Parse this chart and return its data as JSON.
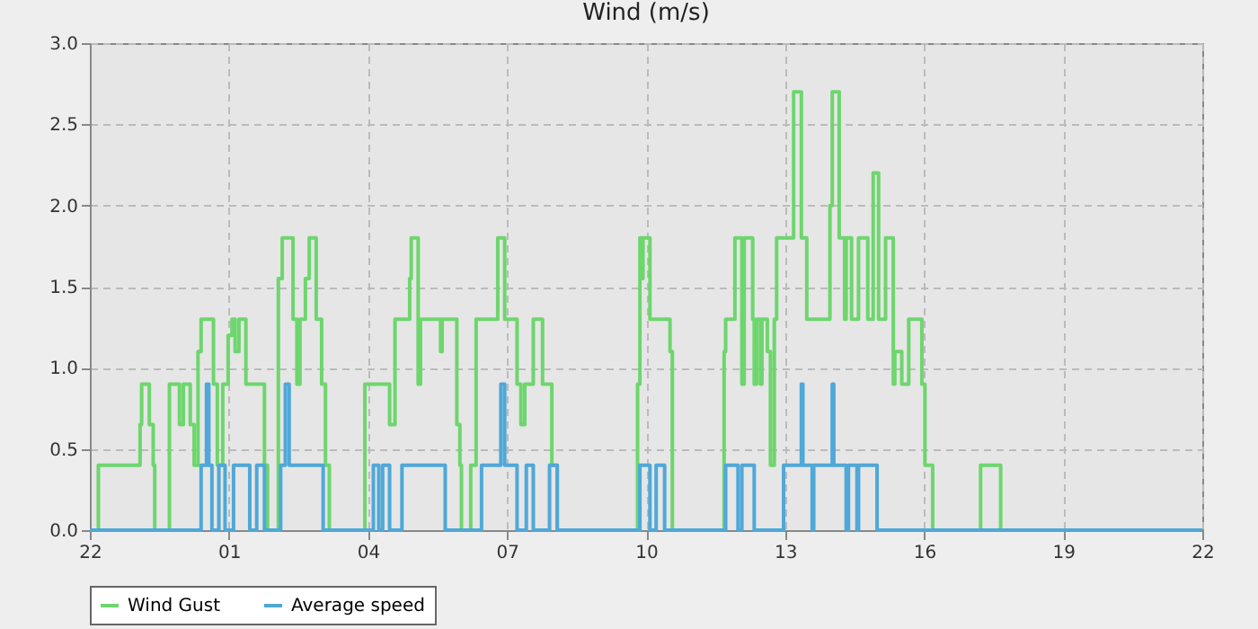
{
  "chart_data": {
    "type": "step",
    "title": "Wind (m/s)",
    "xlim": [
      "--01-01T22:00",
      "--01-02T22:00"
    ],
    "xticks": [
      {
        "value": "--01-01T22:00",
        "label": "22"
      },
      {
        "value": "--01-02T01:00",
        "label": "01"
      },
      {
        "value": "--01-02T04:00",
        "label": "04"
      },
      {
        "value": "--01-02T07:00",
        "label": "07"
      },
      {
        "value": "--01-02T10:00",
        "label": "10"
      },
      {
        "value": "--01-02T13:00",
        "label": "13"
      },
      {
        "value": "--01-02T16:00",
        "label": "16"
      },
      {
        "value": "--01-02T19:00",
        "label": "19"
      },
      {
        "value": "--01-02T22:00",
        "label": "22"
      }
    ],
    "ylim": [
      0,
      3
    ],
    "yticks": [
      {
        "value": 0,
        "label": "0.0"
      },
      {
        "value": 0.5,
        "label": "0.5"
      },
      {
        "value": 1,
        "label": "1.0"
      },
      {
        "value": 1.5,
        "label": "1.5"
      },
      {
        "value": 2,
        "label": "2.0"
      },
      {
        "value": 2.5,
        "label": "2.5"
      },
      {
        "value": 3,
        "label": "3.0"
      }
    ],
    "grid": true,
    "legend": "bottom",
    "line_style": "solid",
    "series": [
      {
        "name": "Wind Gust",
        "color": "#6dd66d",
        "x": [
          "--01-01T22:00",
          "--01-01T22:11",
          "--01-01T23:05",
          "--01-01T23:07",
          "--01-01T23:17",
          "--01-01T23:22",
          "--01-01T23:24",
          "--01-01T23:43",
          "--01-01T23:56",
          "--01-02T00:01",
          "--01-02T00:10",
          "--01-02T00:15",
          "--01-02T00:20",
          "--01-02T00:24",
          "--01-02T00:40",
          "--01-02T00:45",
          "--01-02T00:52",
          "--01-02T00:59",
          "--01-02T01:04",
          "--01-02T01:08",
          "--01-02T01:13",
          "--01-02T01:22",
          "--01-02T01:46",
          "--01-02T01:50",
          "--01-02T02:04",
          "--01-02T02:09",
          "--01-02T02:23",
          "--01-02T02:28",
          "--01-02T02:32",
          "--01-02T02:39",
          "--01-02T02:44",
          "--01-02T02:53",
          "--01-02T03:00",
          "--01-02T03:05",
          "--01-02T03:10",
          "--01-02T03:56",
          "--01-02T04:28",
          "--01-02T04:35",
          "--01-02T04:54",
          "--01-02T04:56",
          "--01-02T05:05",
          "--01-02T05:08",
          "--01-02T05:34",
          "--01-02T05:36",
          "--01-02T05:55",
          "--01-02T05:59",
          "--01-02T06:01",
          "--01-02T06:13",
          "--01-02T06:20",
          "--01-02T06:48",
          "--01-02T06:57",
          "--01-02T07:13",
          "--01-02T07:18",
          "--01-02T07:23",
          "--01-02T07:34",
          "--01-02T07:46",
          "--01-02T07:58",
          "--01-02T08:05",
          "--01-02T09:49",
          "--01-02T09:52",
          "--01-02T09:54",
          "--01-02T09:56",
          "--01-02T10:05",
          "--01-02T10:31",
          "--01-02T10:34",
          "--01-02T11:41",
          "--01-02T11:43",
          "--01-02T11:55",
          "--01-02T12:04",
          "--01-02T12:07",
          "--01-02T12:18",
          "--01-02T12:20",
          "--01-02T12:23",
          "--01-02T12:28",
          "--01-02T12:30",
          "--01-02T12:37",
          "--01-02T12:41",
          "--01-02T12:46",
          "--01-02T12:49",
          "--01-02T13:11",
          "--01-02T13:21",
          "--01-02T13:28",
          "--01-02T13:58",
          "--01-02T14:01",
          "--01-02T14:10",
          "--01-02T14:17",
          "--01-02T14:19",
          "--01-02T14:26",
          "--01-02T14:35",
          "--01-02T14:47",
          "--01-02T14:54",
          "--01-02T15:01",
          "--01-02T15:10",
          "--01-02T15:20",
          "--01-02T15:22",
          "--01-02T15:31",
          "--01-02T15:40",
          "--01-02T15:57",
          "--01-02T16:01",
          "--01-02T16:11",
          "--01-02T17:13",
          "--01-02T17:39",
          "--01-02T22:00"
        ],
        "values": [
          0,
          0.4,
          0.65,
          0.9,
          0.65,
          0.4,
          0,
          0.9,
          0.65,
          0.9,
          0.65,
          0.4,
          1.1,
          1.3,
          0.9,
          0.4,
          0.9,
          1.2,
          1.3,
          1.1,
          1.3,
          0.9,
          0.4,
          0,
          1.55,
          1.8,
          1.3,
          0.9,
          1.3,
          1.55,
          1.8,
          1.3,
          0.9,
          0.4,
          0,
          0.9,
          0.65,
          1.3,
          1.55,
          1.8,
          0.9,
          1.3,
          1.1,
          1.3,
          0.65,
          0.4,
          0,
          0.4,
          1.3,
          1.8,
          1.3,
          0.9,
          0.65,
          0.9,
          1.3,
          0.9,
          0.4,
          0,
          0.9,
          1.8,
          1.55,
          1.8,
          1.3,
          1.1,
          0,
          1.1,
          1.3,
          1.8,
          0.9,
          1.8,
          1.3,
          0.9,
          1.3,
          0.9,
          1.3,
          1.1,
          0.4,
          1.3,
          1.8,
          2.7,
          1.8,
          1.3,
          2,
          2.7,
          1.8,
          1.3,
          1.8,
          1.3,
          1.8,
          1.3,
          2.2,
          1.3,
          1.8,
          0.9,
          1.1,
          0.9,
          1.3,
          0.9,
          0.4,
          0,
          0.4,
          0,
          0
        ]
      },
      {
        "name": "Average speed",
        "color": "#4fa8d8",
        "x": [
          "--01-01T22:00",
          "--01-02T00:24",
          "--01-02T00:31",
          "--01-02T00:34",
          "--01-02T00:38",
          "--01-02T00:47",
          "--01-02T00:55",
          "--01-02T01:06",
          "--01-02T01:27",
          "--01-02T01:36",
          "--01-02T01:46",
          "--01-02T02:07",
          "--01-02T02:13",
          "--01-02T02:18",
          "--01-02T03:02",
          "--01-02T04:07",
          "--01-02T04:14",
          "--01-02T04:19",
          "--01-02T04:28",
          "--01-02T04:44",
          "--01-02T05:40",
          "--01-02T06:27",
          "--01-02T06:52",
          "--01-02T06:57",
          "--01-02T07:13",
          "--01-02T07:25",
          "--01-02T07:34",
          "--01-02T07:55",
          "--01-02T08:05",
          "--01-02T09:52",
          "--01-02T10:05",
          "--01-02T10:13",
          "--01-02T10:24",
          "--01-02T11:43",
          "--01-02T11:59",
          "--01-02T12:04",
          "--01-02T12:20",
          "--01-02T12:58",
          "--01-02T13:21",
          "--01-02T13:23",
          "--01-02T13:35",
          "--01-02T13:37",
          "--01-02T14:01",
          "--01-02T14:03",
          "--01-02T14:19",
          "--01-02T14:22",
          "--01-02T14:33",
          "--01-02T14:35",
          "--01-02T14:59",
          "--01-02T22:00"
        ],
        "values": [
          0,
          0.4,
          0.9,
          0.4,
          0,
          0.4,
          0,
          0.4,
          0,
          0.4,
          0,
          0.4,
          0.9,
          0.4,
          0,
          0.4,
          0,
          0.4,
          0,
          0.4,
          0,
          0.4,
          0.9,
          0.4,
          0,
          0.4,
          0,
          0.4,
          0,
          0.4,
          0,
          0.4,
          0,
          0.4,
          0,
          0.4,
          0,
          0.4,
          0.9,
          0.4,
          0,
          0.4,
          0.9,
          0.4,
          0,
          0.4,
          0,
          0.4,
          0,
          0
        ]
      }
    ]
  }
}
